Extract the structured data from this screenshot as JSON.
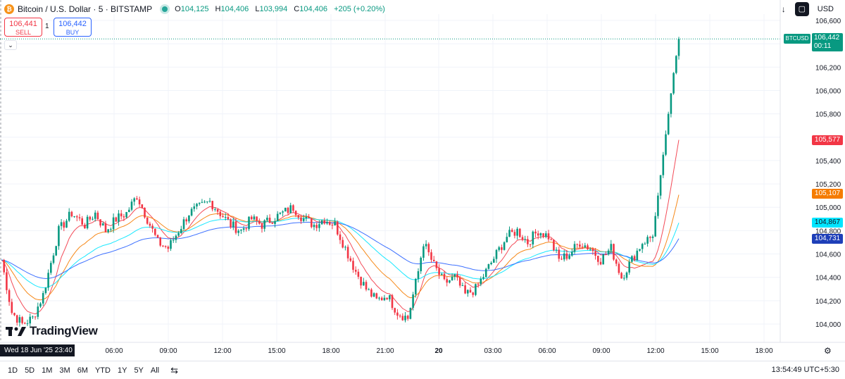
{
  "header": {
    "coin_icon": "₿",
    "symbol_title": "Bitcoin / U.S. Dollar · 5 · BITSTAMP",
    "o_label": "O",
    "o_value": "104,125",
    "h_label": "H",
    "h_value": "104,406",
    "l_label": "L",
    "l_value": "103,994",
    "c_label": "C",
    "c_value": "104,406",
    "change": "+205 (+0.20%)"
  },
  "trade": {
    "sell_price": "106,441",
    "sell_label": "SELL",
    "spread": "1",
    "buy_price": "106,442",
    "buy_label": "BUY"
  },
  "toolbar": {
    "download_icon": "↓",
    "snapshot_icon": "▢",
    "currency": "USD"
  },
  "price_axis": {
    "labels": [
      "106,600",
      "106,400",
      "106,200",
      "106,000",
      "105,800",
      "105,600",
      "105,400",
      "105,200",
      "105,000",
      "104,800",
      "104,600",
      "104,400",
      "104,200",
      "104,000"
    ]
  },
  "price_tags": {
    "symbol": "BTCUSD",
    "last_price": "106,442",
    "countdown": "00:11",
    "ma_red": "105,577",
    "ma_orange": "105,107",
    "ma_cyan": "104,867",
    "ma_blue": "104,731"
  },
  "time_axis": {
    "labels": [
      "06:00",
      "09:00",
      "12:00",
      "15:00",
      "18:00",
      "21:00",
      "20",
      "03:00",
      "06:00",
      "09:00",
      "12:00",
      "15:00",
      "18:00"
    ],
    "date_badge": "Wed 18 Jun '25   23:40"
  },
  "watermark": "TradingView",
  "bottom_bar": {
    "ranges": [
      "1D",
      "5D",
      "1M",
      "3M",
      "6M",
      "YTD",
      "1Y",
      "5Y",
      "All"
    ],
    "date_range_icon": "calendar-range-icon",
    "clock": "13:54:49 UTC+5:30"
  },
  "colors": {
    "up": "#089981",
    "down": "#f23645",
    "ma_red": "#f23645",
    "ma_orange": "#f57c00",
    "ma_cyan": "#00e5ff",
    "ma_blue": "#2962ff"
  },
  "chart_data": {
    "type": "candlestick",
    "interval": "5m",
    "ylim": [
      103900,
      106650
    ],
    "yticks": [
      104000,
      104200,
      104400,
      104600,
      104800,
      105000,
      105200,
      105400,
      105600,
      105800,
      106000,
      106200,
      106400,
      106600
    ],
    "price_path": [
      [
        0,
        104550
      ],
      [
        4,
        104100
      ],
      [
        8,
        104000
      ],
      [
        12,
        104050
      ],
      [
        16,
        104250
      ],
      [
        22,
        104800
      ],
      [
        27,
        104950
      ],
      [
        32,
        104850
      ],
      [
        36,
        104950
      ],
      [
        40,
        104800
      ],
      [
        44,
        104900
      ],
      [
        48,
        104950
      ],
      [
        52,
        105100
      ],
      [
        56,
        104900
      ],
      [
        60,
        104700
      ],
      [
        64,
        104650
      ],
      [
        68,
        104800
      ],
      [
        72,
        104950
      ],
      [
        76,
        105000
      ],
      [
        80,
        105050
      ],
      [
        84,
        104950
      ],
      [
        88,
        104850
      ],
      [
        92,
        104800
      ],
      [
        96,
        104900
      ],
      [
        100,
        104850
      ],
      [
        104,
        104900
      ],
      [
        108,
        104950
      ],
      [
        112,
        105000
      ],
      [
        116,
        104900
      ],
      [
        120,
        104850
      ],
      [
        124,
        104900
      ],
      [
        128,
        104850
      ],
      [
        132,
        104650
      ],
      [
        136,
        104450
      ],
      [
        140,
        104300
      ],
      [
        144,
        104200
      ],
      [
        148,
        104250
      ],
      [
        152,
        104100
      ],
      [
        156,
        104050
      ],
      [
        160,
        104450
      ],
      [
        162,
        104700
      ],
      [
        166,
        104500
      ],
      [
        170,
        104350
      ],
      [
        174,
        104400
      ],
      [
        178,
        104250
      ],
      [
        182,
        104300
      ],
      [
        186,
        104450
      ],
      [
        190,
        104600
      ],
      [
        194,
        104750
      ],
      [
        198,
        104800
      ],
      [
        202,
        104700
      ],
      [
        206,
        104800
      ],
      [
        210,
        104750
      ],
      [
        214,
        104550
      ],
      [
        218,
        104600
      ],
      [
        222,
        104700
      ],
      [
        226,
        104650
      ],
      [
        230,
        104550
      ],
      [
        234,
        104650
      ],
      [
        238,
        104400
      ],
      [
        242,
        104550
      ],
      [
        246,
        104700
      ],
      [
        250,
        104750
      ],
      [
        252,
        105100
      ],
      [
        254,
        105450
      ],
      [
        256,
        105800
      ],
      [
        258,
        106150
      ],
      [
        260,
        106442
      ]
    ],
    "moving_averages": [
      {
        "color": "red",
        "last": 105577
      },
      {
        "color": "orange",
        "last": 105107
      },
      {
        "color": "cyan",
        "last": 104867
      },
      {
        "color": "blue",
        "last": 104731
      }
    ]
  }
}
